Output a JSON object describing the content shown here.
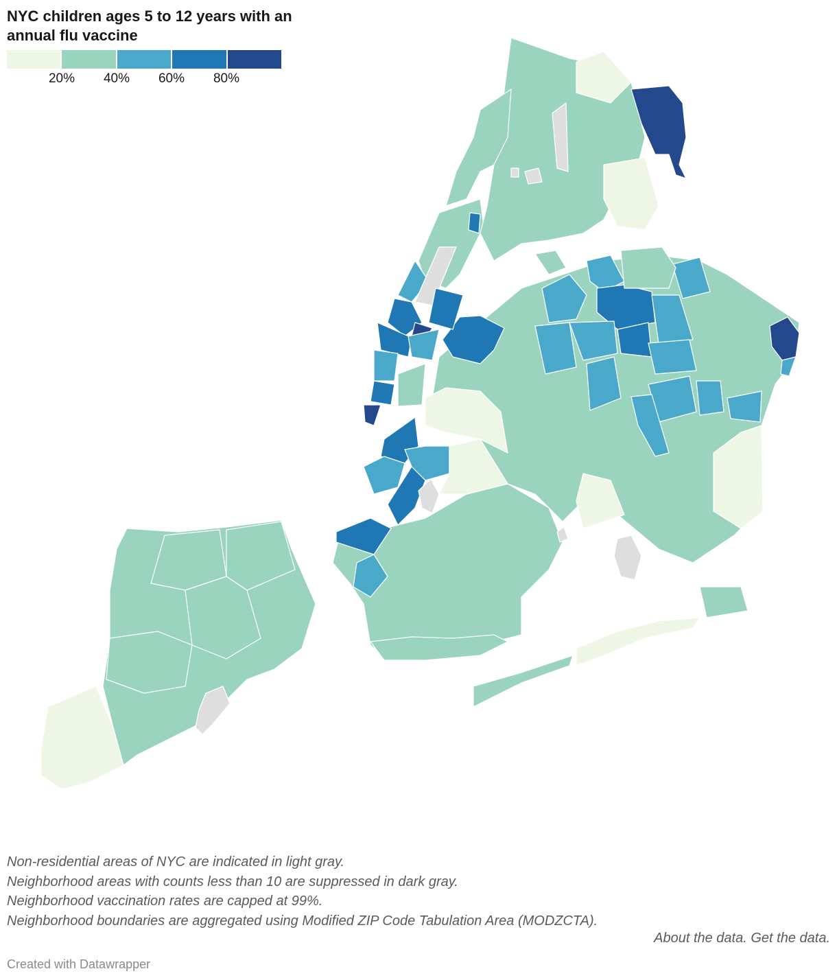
{
  "title": "NYC children ages 5 to 12 years with an annual flu vaccine",
  "legend": {
    "colors": [
      "#eef7e6",
      "#9ad4bf",
      "#4aa9cb",
      "#1f78b4",
      "#24488c"
    ],
    "ticks": [
      "20%",
      "40%",
      "60%",
      "80%"
    ]
  },
  "colors": {
    "nonresidential": "#dedede",
    "suppressed": "#bdbdbd",
    "water": "#ffffff",
    "text": "#181818",
    "notes": "#5a5a5a",
    "credit": "#8a8a8a"
  },
  "notes": [
    "Non-residential areas of NYC are indicated in light gray.",
    "Neighborhood areas with counts less than 10 are suppressed in dark gray.",
    "Neighborhood vaccination rates are capped at 99%.",
    "Neighborhood boundaries are aggregated using Modified ZIP Code Tabulation Area (MODZCTA)."
  ],
  "links": {
    "about": "About the data.",
    "get": "Get the data."
  },
  "credit": "Created with Datawrapper"
}
